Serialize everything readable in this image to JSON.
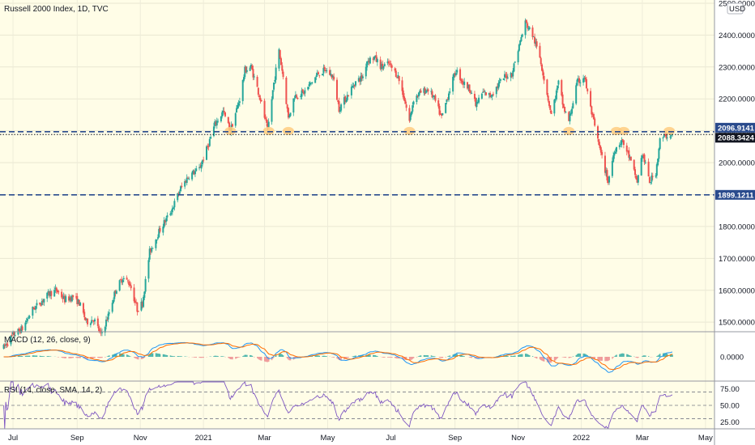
{
  "chart_data": {
    "type": "candlestick",
    "title": "Russell 2000 Index, 1D, TVC",
    "currency_badge": "USD",
    "x_ticks": [
      "Jul",
      "Sep",
      "Nov",
      "2021",
      "Mar",
      "May",
      "Jul",
      "Sep",
      "Nov",
      "2022",
      "Mar",
      "May"
    ],
    "y_ticks": [
      "2500.0000",
      "2400.0000",
      "2300.0000",
      "2200.0000",
      "2100.0000",
      "2000.0000",
      "1900.0000",
      "1800.0000",
      "1700.0000",
      "1600.0000",
      "1500.0000"
    ],
    "ylim": [
      1470,
      2510
    ],
    "price_path": [
      [
        "2020-06-22",
        1420
      ],
      [
        "2020-07-01",
        1460
      ],
      [
        "2020-07-10",
        1480
      ],
      [
        "2020-07-20",
        1540
      ],
      [
        "2020-07-27",
        1560
      ],
      [
        "2020-08-05",
        1590
      ],
      [
        "2020-08-12",
        1600
      ],
      [
        "2020-08-20",
        1570
      ],
      [
        "2020-08-28",
        1580
      ],
      [
        "2020-09-03",
        1560
      ],
      [
        "2020-09-10",
        1500
      ],
      [
        "2020-09-17",
        1510
      ],
      [
        "2020-09-24",
        1460
      ],
      [
        "2020-10-01",
        1520
      ],
      [
        "2020-10-08",
        1600
      ],
      [
        "2020-10-15",
        1640
      ],
      [
        "2020-10-22",
        1620
      ],
      [
        "2020-10-29",
        1540
      ],
      [
        "2020-11-03",
        1560
      ],
      [
        "2020-11-10",
        1720
      ],
      [
        "2020-11-20",
        1790
      ],
      [
        "2020-12-01",
        1850
      ],
      [
        "2020-12-10",
        1920
      ],
      [
        "2020-12-18",
        1960
      ],
      [
        "2020-12-28",
        1980
      ],
      [
        "2021-01-05",
        2050
      ],
      [
        "2021-01-12",
        2120
      ],
      [
        "2021-01-20",
        2160
      ],
      [
        "2021-01-27",
        2100
      ],
      [
        "2021-02-05",
        2200
      ],
      [
        "2021-02-10",
        2290
      ],
      [
        "2021-02-16",
        2300
      ],
      [
        "2021-02-25",
        2200
      ],
      [
        "2021-03-04",
        2100
      ],
      [
        "2021-03-10",
        2250
      ],
      [
        "2021-03-15",
        2350
      ],
      [
        "2021-03-19",
        2270
      ],
      [
        "2021-03-24",
        2140
      ],
      [
        "2021-03-30",
        2210
      ],
      [
        "2021-04-08",
        2220
      ],
      [
        "2021-04-15",
        2250
      ],
      [
        "2021-04-22",
        2280
      ],
      [
        "2021-04-29",
        2290
      ],
      [
        "2021-05-06",
        2270
      ],
      [
        "2021-05-12",
        2170
      ],
      [
        "2021-05-20",
        2210
      ],
      [
        "2021-05-27",
        2250
      ],
      [
        "2021-06-04",
        2270
      ],
      [
        "2021-06-08",
        2320
      ],
      [
        "2021-06-15",
        2330
      ],
      [
        "2021-06-22",
        2300
      ],
      [
        "2021-06-29",
        2310
      ],
      [
        "2021-07-08",
        2270
      ],
      [
        "2021-07-14",
        2200
      ],
      [
        "2021-07-19",
        2130
      ],
      [
        "2021-07-23",
        2200
      ],
      [
        "2021-07-30",
        2220
      ],
      [
        "2021-08-06",
        2230
      ],
      [
        "2021-08-12",
        2200
      ],
      [
        "2021-08-19",
        2140
      ],
      [
        "2021-08-26",
        2220
      ],
      [
        "2021-09-02",
        2290
      ],
      [
        "2021-09-09",
        2250
      ],
      [
        "2021-09-16",
        2230
      ],
      [
        "2021-09-21",
        2180
      ],
      [
        "2021-09-28",
        2220
      ],
      [
        "2021-10-05",
        2210
      ],
      [
        "2021-10-12",
        2240
      ],
      [
        "2021-10-19",
        2270
      ],
      [
        "2021-10-26",
        2280
      ],
      [
        "2021-11-03",
        2380
      ],
      [
        "2021-11-08",
        2440
      ],
      [
        "2021-11-15",
        2400
      ],
      [
        "2021-11-22",
        2330
      ],
      [
        "2021-11-30",
        2200
      ],
      [
        "2021-12-03",
        2150
      ],
      [
        "2021-12-10",
        2250
      ],
      [
        "2021-12-15",
        2170
      ],
      [
        "2021-12-20",
        2130
      ],
      [
        "2021-12-28",
        2250
      ],
      [
        "2022-01-04",
        2270
      ],
      [
        "2022-01-10",
        2170
      ],
      [
        "2022-01-19",
        2040
      ],
      [
        "2022-01-27",
        1940
      ],
      [
        "2022-02-02",
        2040
      ],
      [
        "2022-02-09",
        2070
      ],
      [
        "2022-02-15",
        2030
      ],
      [
        "2022-02-24",
        1940
      ],
      [
        "2022-03-01",
        2030
      ],
      [
        "2022-03-08",
        1940
      ],
      [
        "2022-03-14",
        1970
      ],
      [
        "2022-03-18",
        2070
      ],
      [
        "2022-03-24",
        2085
      ],
      [
        "2022-03-29",
        2088
      ]
    ],
    "lines": [
      {
        "name": "resistance",
        "value": 2096.9141,
        "label": "2096.9141",
        "color": "#2a4b8d",
        "style": "dashed"
      },
      {
        "name": "support",
        "value": 1899.1211,
        "label": "1899.1211",
        "color": "#2a4b8d",
        "style": "dashed"
      },
      {
        "name": "last",
        "value": 2088.3424,
        "label": "2088.3424",
        "color": "#131722",
        "style": "dotted"
      }
    ],
    "touch_markers": [
      "2021-01-27",
      "2021-03-05",
      "2021-03-24",
      "2021-07-19",
      "2021-12-20",
      "2022-02-04",
      "2022-02-11",
      "2022-03-27"
    ],
    "colors": {
      "bg": "#fffde7",
      "up": "#26a69a",
      "down": "#ef5350",
      "macd": "#2196f3",
      "signal": "#ff6d00",
      "rsi": "#7e57c2",
      "marker": "#ffcc80"
    },
    "macd_panel": {
      "label": "MACD (12, 26, close, 9)",
      "zero_tick": "0.0000"
    },
    "rsi_panel": {
      "label": "RSI (14, close, SMA, 14, 2)",
      "ticks": [
        "75.00",
        "50.00",
        "25.00"
      ],
      "levels": [
        70,
        50,
        30
      ]
    }
  }
}
